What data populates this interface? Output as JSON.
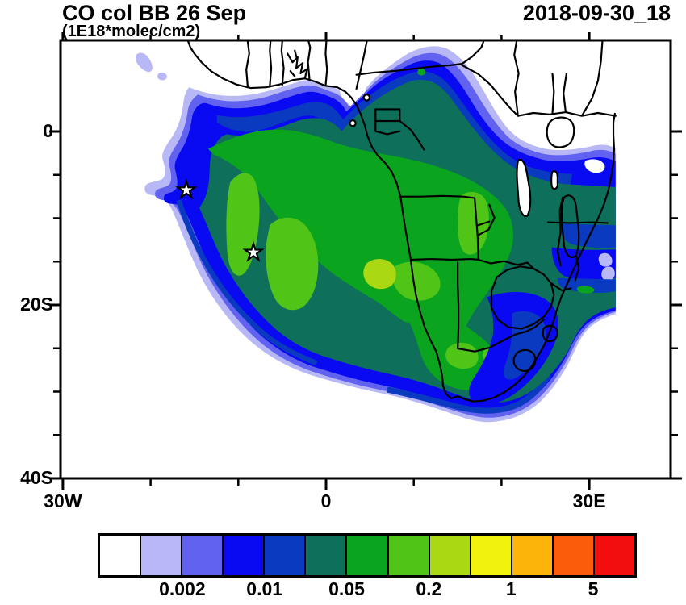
{
  "header": {
    "title": "CO col BB 26 Sep",
    "subtitle": "(1E18*molec/cm2)",
    "datestamp": "2018-09-30_18"
  },
  "colors": {
    "frame": "#000000",
    "border": "#000000",
    "white": "#ffffff",
    "lavender": "#b8b8f6",
    "violet": "#6262f0",
    "blue": "#0a0af2",
    "navy": "#0a3abf",
    "teal": "#0e705a",
    "green": "#0aa41e",
    "light_green": "#50c517",
    "yellow_green": "#aad813",
    "yellow": "#f2f20f",
    "orange": "#fdb40a",
    "dark_orange": "#fb5c0b",
    "red": "#f20e0e"
  },
  "axes": {
    "x_major": [
      {
        "lon": -30,
        "label": "30W"
      },
      {
        "lon": 0,
        "label": "0"
      },
      {
        "lon": 30,
        "label": "30E"
      }
    ],
    "x_minor": [
      -20,
      -10,
      10,
      20
    ],
    "y_major": [
      {
        "lat": 0,
        "label": "0"
      },
      {
        "lat": -20,
        "label": "20S"
      },
      {
        "lat": -40,
        "label": "40S"
      }
    ],
    "y_minor": [
      -5,
      -10,
      -15,
      -25,
      -30,
      -35
    ]
  },
  "colorbar": {
    "colors": [
      "#ffffff",
      "#b8b8f6",
      "#6262f0",
      "#0a0af2",
      "#0a3abf",
      "#0e705a",
      "#0aa41e",
      "#50c517",
      "#aad813",
      "#f2f20f",
      "#fdb40a",
      "#fb5c0b",
      "#f20e0e"
    ],
    "labels": [
      {
        "boundary_index": 2,
        "text": "0.002"
      },
      {
        "boundary_index": 4,
        "text": "0.01"
      },
      {
        "boundary_index": 6,
        "text": "0.05"
      },
      {
        "boundary_index": 8,
        "text": "0.2"
      },
      {
        "boundary_index": 10,
        "text": "1"
      },
      {
        "boundary_index": 12,
        "text": "5"
      }
    ]
  },
  "chart_data": {
    "type": "heatmap",
    "title": "CO col BB 26 Sep",
    "units": "1E18*molec/cm2",
    "timestamp": "2018-09-30_18",
    "region": "Africa / South Atlantic",
    "lon_range": [
      -30.3,
      39.3
    ],
    "lat_range": [
      -40.5,
      10.5
    ],
    "xticks_major": [
      {
        "lon": -30,
        "label": "30W"
      },
      {
        "lon": 0,
        "label": "0"
      },
      {
        "lon": 30,
        "label": "30E"
      }
    ],
    "xticks_minor_lons": [
      -20,
      -10,
      10,
      20
    ],
    "yticks_major": [
      {
        "lat": 0,
        "label": "0"
      },
      {
        "lat": -20,
        "label": "20S"
      },
      {
        "lat": -40,
        "label": "40S"
      }
    ],
    "yticks_minor_lats": [
      -5,
      -10,
      -15,
      -25,
      -30,
      -35
    ],
    "colorbar_labeled_levels": [
      "0.002",
      "0.01",
      "0.05",
      "0.2",
      "1",
      "5"
    ],
    "colorbar_colors": [
      "#ffffff",
      "#b8b8f6",
      "#6262f0",
      "#0a0af2",
      "#0a3abf",
      "#0e705a",
      "#0aa41e",
      "#50c517",
      "#aad813",
      "#f2f20f",
      "#fdb40a",
      "#fb5c0b",
      "#f20e0e"
    ],
    "markers": [
      {
        "type": "open-star",
        "lon": -14.5,
        "lat": -8.3
      },
      {
        "type": "open-star",
        "lon": -6.1,
        "lat": -16.2
      }
    ],
    "grid": "off",
    "legend_position": "horizontal colorbar below map"
  }
}
